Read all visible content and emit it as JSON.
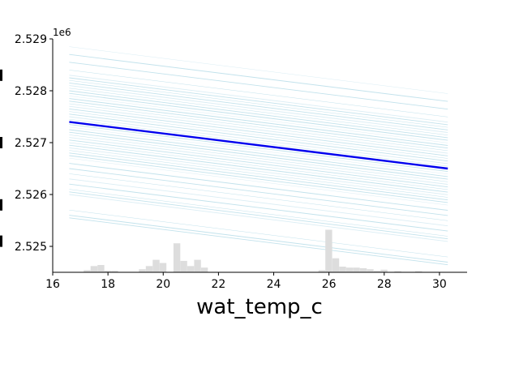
{
  "chart_data": {
    "type": "line",
    "xlabel": "wat_temp_c",
    "ylabel": "",
    "offset_label": "1e6",
    "xlim": [
      16.0,
      31.0
    ],
    "ylim": [
      2524.5,
      2529.0
    ],
    "x_ticks": [
      16,
      18,
      20,
      22,
      24,
      26,
      28,
      30
    ],
    "y_ticks": [
      2525,
      2526,
      2527,
      2528,
      2529
    ],
    "y_tick_labels": [
      "2.525",
      "2.526",
      "2.527",
      "2.528",
      "2.529"
    ],
    "y_units": "thousands (times 1e6 offset shown as 2.5xx)",
    "x_range": [
      16.6,
      30.3
    ],
    "average": {
      "name": "average",
      "color": "#0000ee",
      "x": [
        16.6,
        30.3
      ],
      "y": [
        2527.4,
        2526.5
      ]
    },
    "ice_style": {
      "color": "#add8e6"
    },
    "ice_lines": {
      "slope_per_degree": -0.066,
      "start_y": [
        2528.85,
        2528.7,
        2528.55,
        2528.4,
        2528.3,
        2528.25,
        2528.2,
        2528.15,
        2528.1,
        2528.05,
        2528.0,
        2527.95,
        2527.9,
        2527.85,
        2527.8,
        2527.75,
        2527.7,
        2527.65,
        2527.6,
        2527.55,
        2527.5,
        2527.45,
        2527.4,
        2527.35,
        2527.3,
        2527.25,
        2527.2,
        2527.15,
        2527.1,
        2527.05,
        2527.0,
        2526.95,
        2526.9,
        2526.85,
        2526.8,
        2526.75,
        2526.7,
        2526.6,
        2526.5,
        2526.4,
        2526.3,
        2526.2,
        2526.1,
        2526.05,
        2526.0,
        2525.7,
        2525.6,
        2525.55
      ]
    },
    "histogram": {
      "color": "#dddddd",
      "bin_width": 0.26,
      "bins": [
        {
          "x": 17.25,
          "h": 0.04
        },
        {
          "x": 17.5,
          "h": 0.12
        },
        {
          "x": 17.75,
          "h": 0.14
        },
        {
          "x": 18.0,
          "h": 0.03
        },
        {
          "x": 18.25,
          "h": 0.03
        },
        {
          "x": 19.25,
          "h": 0.06
        },
        {
          "x": 19.5,
          "h": 0.12
        },
        {
          "x": 19.75,
          "h": 0.24
        },
        {
          "x": 20.0,
          "h": 0.18
        },
        {
          "x": 20.5,
          "h": 0.56
        },
        {
          "x": 20.75,
          "h": 0.22
        },
        {
          "x": 21.0,
          "h": 0.12
        },
        {
          "x": 21.25,
          "h": 0.24
        },
        {
          "x": 21.5,
          "h": 0.09
        },
        {
          "x": 25.75,
          "h": 0.04
        },
        {
          "x": 26.0,
          "h": 0.82
        },
        {
          "x": 26.25,
          "h": 0.27
        },
        {
          "x": 26.5,
          "h": 0.11
        },
        {
          "x": 26.75,
          "h": 0.09
        },
        {
          "x": 27.0,
          "h": 0.09
        },
        {
          "x": 27.25,
          "h": 0.08
        },
        {
          "x": 27.5,
          "h": 0.06
        },
        {
          "x": 27.75,
          "h": 0.03
        },
        {
          "x": 28.0,
          "h": 0.05
        },
        {
          "x": 28.5,
          "h": 0.02
        },
        {
          "x": 29.25,
          "h": 0.02
        }
      ]
    },
    "left_edge_marks": [
      2528.3,
      2527.0,
      2525.8,
      2525.1
    ]
  }
}
